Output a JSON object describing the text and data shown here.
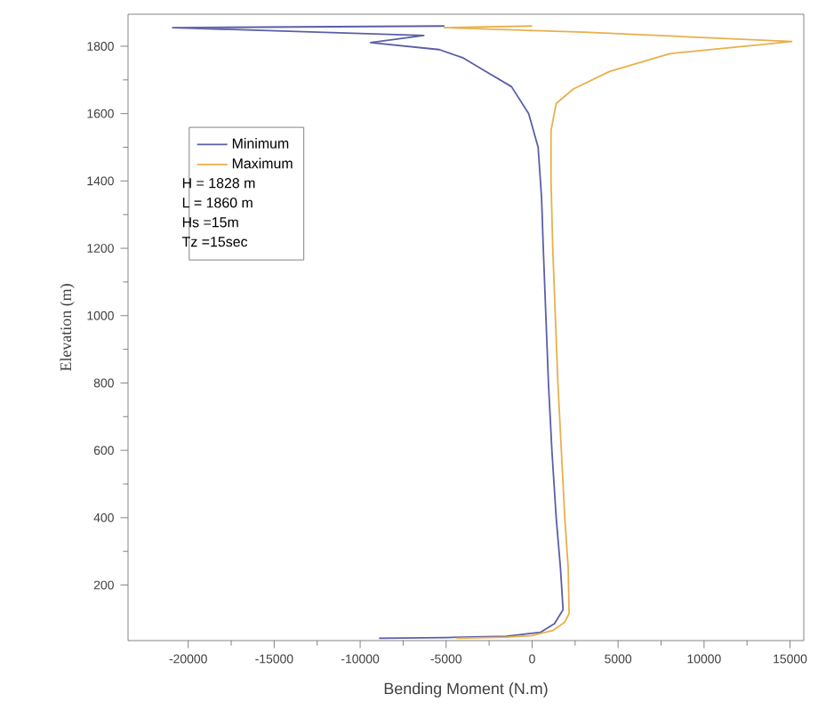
{
  "chart_data": {
    "type": "line",
    "xlabel": "Bending Moment (N.m)",
    "ylabel": "Elevation (m)",
    "xlim": [
      -23500,
      15800
    ],
    "ylim": [
      35,
      1895
    ],
    "xticks": [
      -20000,
      -15000,
      -10000,
      -5000,
      0,
      5000,
      10000,
      15000
    ],
    "yticks": [
      200,
      400,
      600,
      800,
      1000,
      1200,
      1400,
      1600,
      1800
    ],
    "legend": "top left",
    "grid": false,
    "marker": "none",
    "line_style": "solid",
    "annotations": [
      "H = 1828 m",
      "L = 1860 m",
      "Hs =15m",
      "Tz =15sec"
    ],
    "series": [
      {
        "name": "Minimum",
        "color": "#5b5ea6",
        "x": [
          -8900,
          -5000,
          -1500,
          500,
          1300,
          1800,
          1650,
          1400,
          1150,
          950,
          800,
          650,
          550,
          350,
          -200,
          -1200,
          -2700,
          -4000,
          -5400,
          -9400,
          -6300,
          -20900,
          -5100
        ],
        "values": [
          42,
          44,
          48,
          60,
          85,
          127,
          250,
          400,
          600,
          800,
          1000,
          1200,
          1350,
          1500,
          1600,
          1680,
          1725,
          1765,
          1790,
          1811,
          1832,
          1855,
          1860
        ]
      },
      {
        "name": "Maximum",
        "color": "#e8b04a",
        "x": [
          -4400,
          -1500,
          0,
          1200,
          1900,
          2150,
          2100,
          1900,
          1700,
          1500,
          1350,
          1200,
          1100,
          1100,
          1400,
          2400,
          4500,
          8000,
          13200,
          15100,
          9000,
          3000,
          -5100,
          0
        ],
        "values": [
          42,
          45,
          50,
          65,
          90,
          115,
          250,
          400,
          600,
          800,
          1000,
          1200,
          1400,
          1550,
          1630,
          1673,
          1725,
          1778,
          1804,
          1814,
          1828,
          1842,
          1855,
          1860
        ]
      }
    ]
  }
}
